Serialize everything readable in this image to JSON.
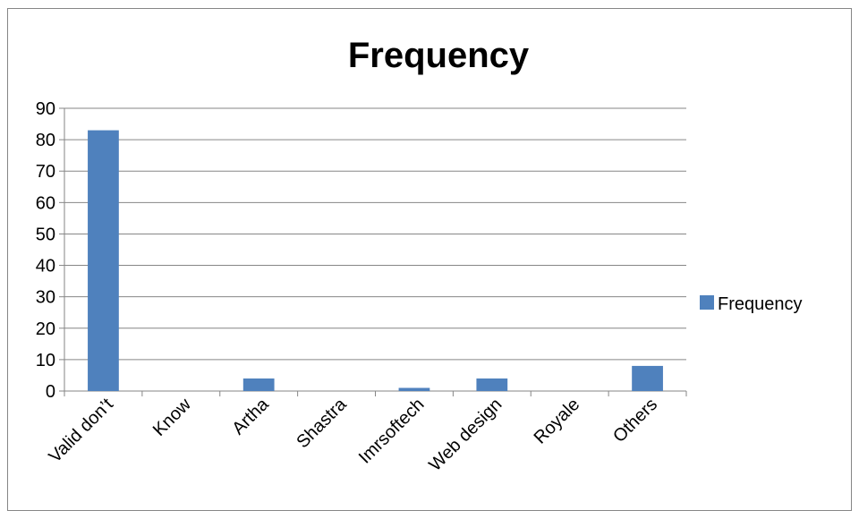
{
  "chart_data": {
    "type": "bar",
    "title": "Frequency",
    "xlabel": "",
    "ylabel": "",
    "categories": [
      "Valid don’t",
      "Know",
      "Artha",
      "Shastra",
      "Imrsoftech",
      "Web design",
      "Royale",
      "Others"
    ],
    "series": [
      {
        "name": "Frequency",
        "values": [
          83,
          0,
          4,
          0,
          1,
          4,
          0,
          8
        ],
        "color": "#4F81BD"
      }
    ],
    "ylim": [
      0,
      90
    ],
    "yticks": [
      0,
      10,
      20,
      30,
      40,
      50,
      60,
      70,
      80,
      90
    ],
    "grid": true,
    "legend": "right"
  }
}
